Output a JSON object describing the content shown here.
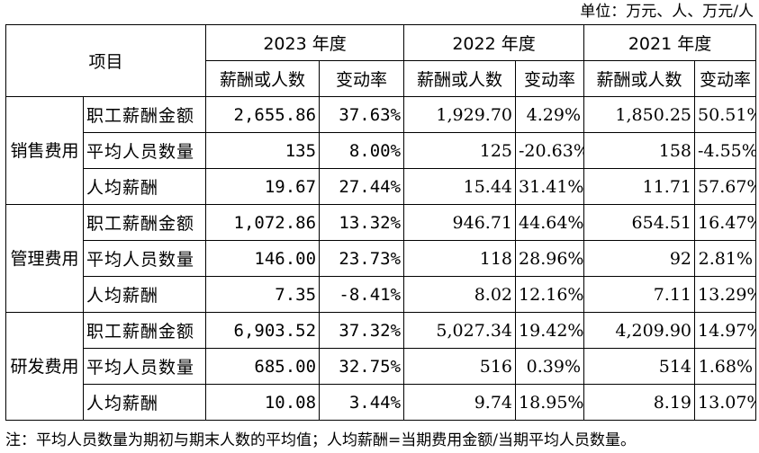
{
  "unit_text": "单位：万元、人、万元/人",
  "header": {
    "item": "项目",
    "years": [
      "2023 年度",
      "2022 年度",
      "2021 年度"
    ],
    "sub": [
      "薪酬或人数",
      "变动率",
      "薪酬或人数",
      "变动率",
      "薪酬或人数",
      "变动率"
    ]
  },
  "groups": [
    {
      "name": "销售费用",
      "rows": [
        {
          "item": "职工薪酬金额",
          "v2023": "2,655.86",
          "r2023": "37.63%",
          "v2022": "1,929.70",
          "r2022": "4.29%",
          "v2021": "1,850.25",
          "r2021": "50.51%"
        },
        {
          "item": "平均人员数量",
          "v2023": "135",
          "r2023": "8.00%",
          "v2022": "125",
          "r2022": "-20.63%",
          "v2021": "158",
          "r2021": "-4.55%"
        },
        {
          "item": "人均薪酬",
          "v2023": "19.67",
          "r2023": "27.44%",
          "v2022": "15.44",
          "r2022": "31.41%",
          "v2021": "11.71",
          "r2021": "57.67%"
        }
      ]
    },
    {
      "name": "管理费用",
      "rows": [
        {
          "item": "职工薪酬金额",
          "v2023": "1,072.86",
          "r2023": "13.32%",
          "v2022": "946.71",
          "r2022": "44.64%",
          "v2021": "654.51",
          "r2021": "16.47%"
        },
        {
          "item": "平均人员数量",
          "v2023": "146.00",
          "r2023": "23.73%",
          "v2022": "118",
          "r2022": "28.96%",
          "v2021": "92",
          "r2021": "2.81%"
        },
        {
          "item": "人均薪酬",
          "v2023": "7.35",
          "r2023": "-8.41%",
          "v2022": "8.02",
          "r2022": "12.16%",
          "v2021": "7.11",
          "r2021": "13.29%"
        }
      ]
    },
    {
      "name": "研发费用",
      "rows": [
        {
          "item": "职工薪酬金额",
          "v2023": "6,903.52",
          "r2023": "37.32%",
          "v2022": "5,027.34",
          "r2022": "19.42%",
          "v2021": "4,209.90",
          "r2021": "14.97%"
        },
        {
          "item": "平均人员数量",
          "v2023": "685.00",
          "r2023": "32.75%",
          "v2022": "516",
          "r2022": "0.39%",
          "v2021": "514",
          "r2021": "1.68%"
        },
        {
          "item": "人均薪酬",
          "v2023": "10.08",
          "r2023": "3.44%",
          "v2022": "9.74",
          "r2022": "18.95%",
          "v2021": "8.19",
          "r2021": "13.07%"
        }
      ]
    }
  ],
  "note": "注：平均人员数量为期初与期末人数的平均值；人均薪酬=当期费用金额/当期平均人员数量。"
}
